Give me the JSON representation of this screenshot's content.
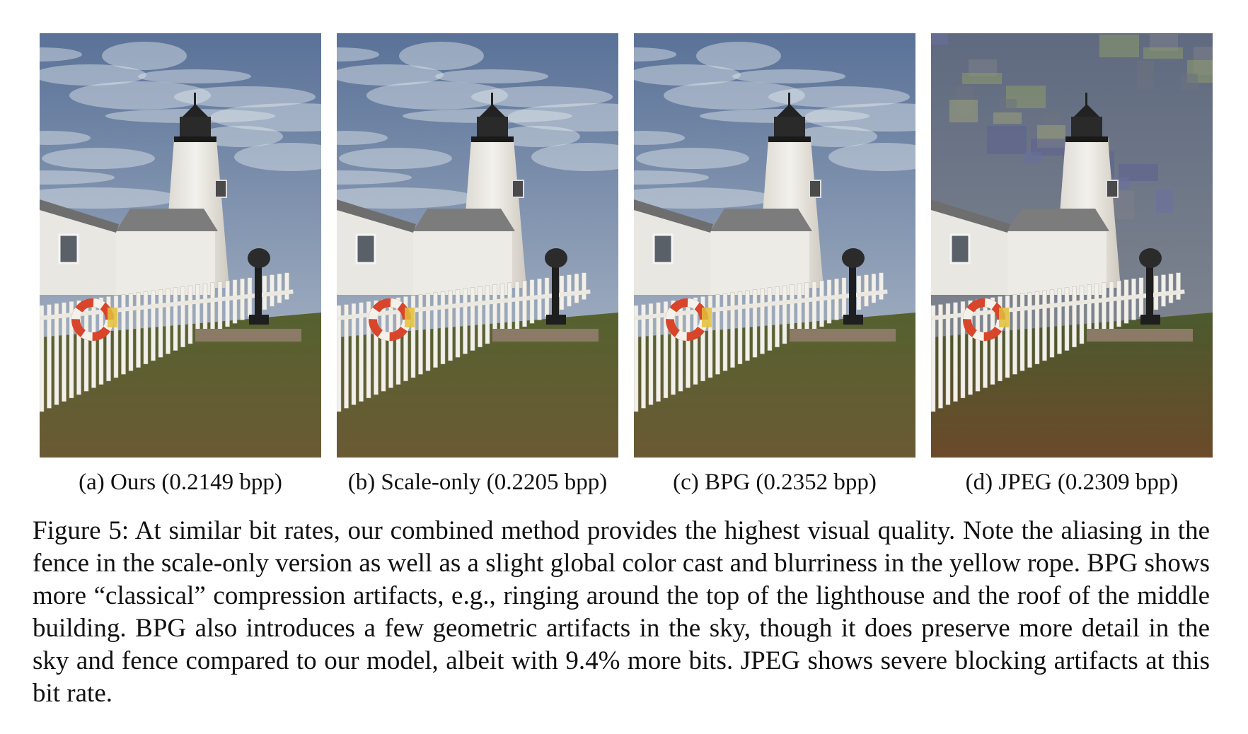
{
  "panels": [
    {
      "id": "a",
      "caption": "(a) Ours (0.2149 bpp)"
    },
    {
      "id": "b",
      "caption": "(b) Scale-only (0.2205 bpp)"
    },
    {
      "id": "c",
      "caption": "(c) BPG (0.2352 bpp)"
    },
    {
      "id": "d",
      "caption": "(d) JPEG (0.2309 bpp)"
    }
  ],
  "caption": {
    "text": "Figure 5: At similar bit rates, our combined method provides the highest visual quality. Note the aliasing in the fence in the scale-only version as well as a slight global color cast and blurriness in the yellow rope. BPG shows more “classical” compression artifacts, e.g., ringing around the top of the lighthouse and the roof of the middle building. BPG also introduces a few geometric artifacts in the sky, though it does preserve more detail in the sky and fence compared to our model, albeit with 9.4% more bits. JPEG shows severe blocking artifacts at this bit rate."
  }
}
